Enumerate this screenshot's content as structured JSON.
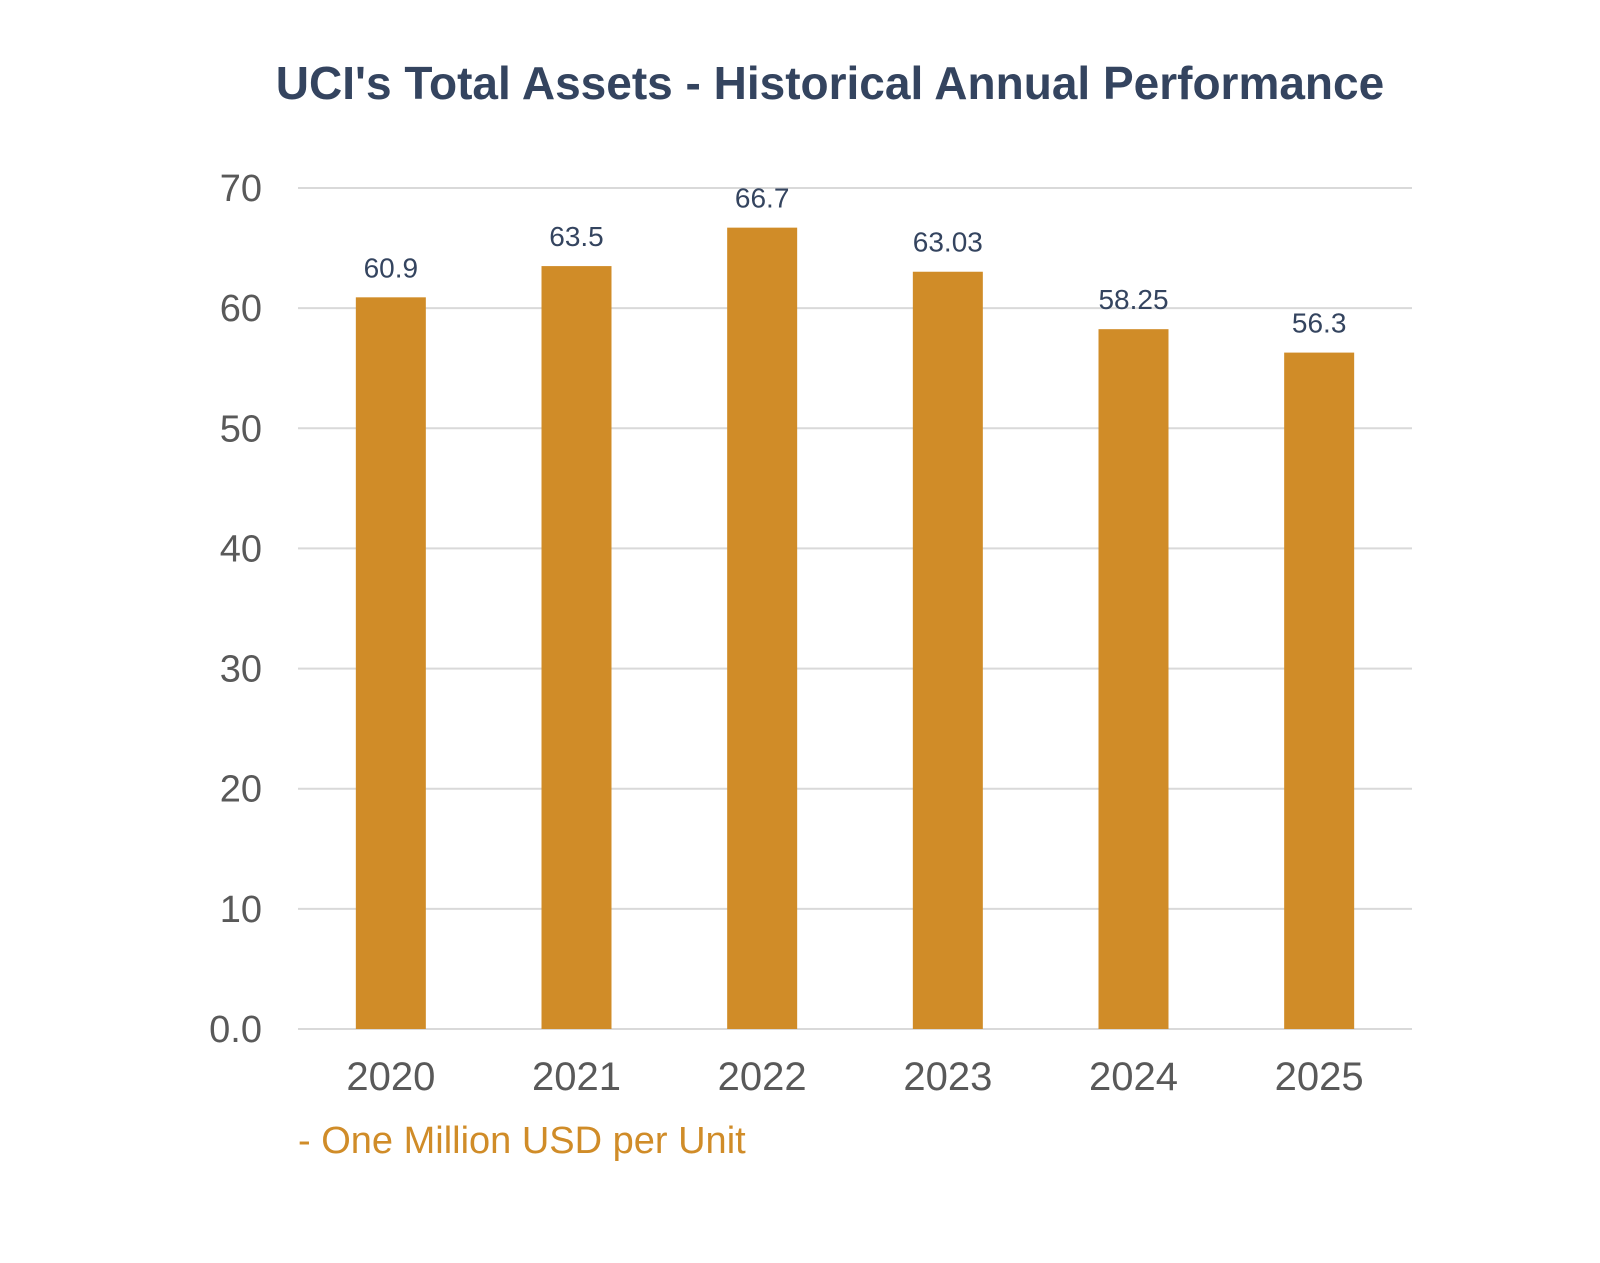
{
  "chart_data": {
    "type": "bar",
    "title": "UCI's Total Assets - Historical Annual Performance",
    "categories": [
      "2020",
      "2021",
      "2022",
      "2023",
      "2024",
      "2025"
    ],
    "values": [
      60.9,
      63.5,
      66.7,
      63.03,
      58.25,
      56.3
    ],
    "value_labels": [
      "60.9",
      "63.5",
      "66.7",
      "63.03",
      "58.25",
      "56.3"
    ],
    "xlabel": "",
    "ylabel": "",
    "ylim": [
      0,
      70
    ],
    "y_ticks": [
      0,
      10,
      20,
      30,
      40,
      50,
      60,
      70
    ],
    "y_tick_labels": [
      "0.0",
      "10",
      "20",
      "30",
      "40",
      "50",
      "60",
      "70"
    ],
    "grid": true,
    "legend": "none",
    "bar_color": "#d08c28",
    "grid_color": "#d9d9d9",
    "tick_label_color": "#595959",
    "value_label_color": "#34445f"
  },
  "footnote": "- One Million USD per Unit"
}
